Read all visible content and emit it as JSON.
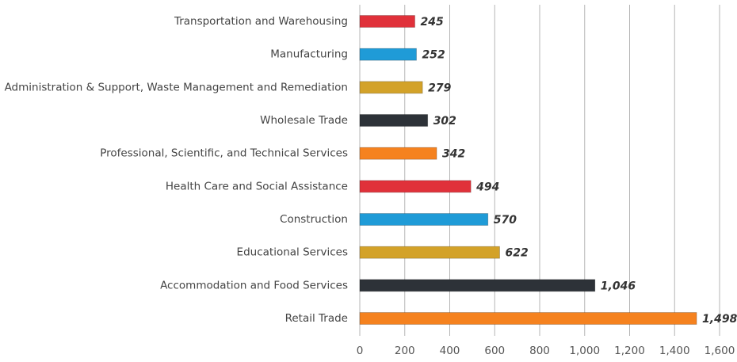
{
  "chart_data": {
    "type": "barh",
    "categories": [
      "Transportation and Warehousing",
      "Manufacturing",
      "Administration & Support, Waste Management and Remediation",
      "Wholesale Trade",
      "Professional, Scientific, and Technical Services",
      "Health Care and Social Assistance",
      "Construction",
      "Educational Services",
      "Accommodation and Food Services",
      "Retail Trade"
    ],
    "values": [
      245,
      252,
      279,
      302,
      342,
      494,
      570,
      622,
      1046,
      1498
    ],
    "value_labels": [
      "245",
      "252",
      "279",
      "302",
      "342",
      "494",
      "570",
      "622",
      "1,046",
      "1,498"
    ],
    "colors": [
      "#e0313a",
      "#1f9bd7",
      "#d3a229",
      "#2d3238",
      "#f5821f",
      "#e0313a",
      "#1f9bd7",
      "#d3a229",
      "#2d3238",
      "#f5821f"
    ],
    "xlim": [
      0,
      1600
    ],
    "xticks": [
      0,
      200,
      400,
      600,
      800,
      {
        "value": 1000,
        "label": "1,000"
      },
      {
        "value": 1200,
        "label": "1,200"
      },
      {
        "value": 1400,
        "label": "1,400"
      },
      {
        "value": 1600,
        "label": "1,600"
      }
    ],
    "grid": true
  }
}
